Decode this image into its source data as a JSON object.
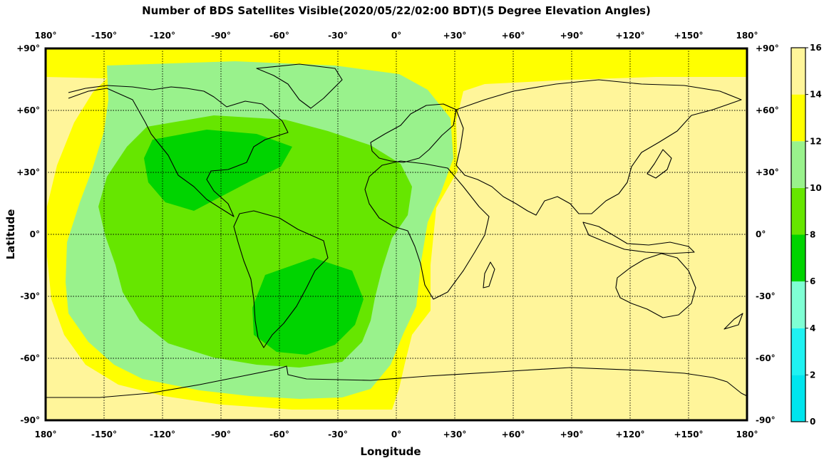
{
  "title": "Number of BDS Satellites Visible(2020/05/22/02:00 BDT)(5 Degree Elevation Angles)",
  "map": {
    "xlabel": "Longitude",
    "ylabel": "Latitude",
    "lon_ticks": [
      "180°",
      "-150°",
      "-120°",
      "-90°",
      "-60°",
      "-30°",
      "0°",
      "+30°",
      "+60°",
      "+90°",
      "+120°",
      "+150°",
      "180°"
    ],
    "lat_ticks": [
      "+90°",
      "+60°",
      "+30°",
      "0°",
      "-30°",
      "-60°",
      "-90°"
    ],
    "lon_range": [
      -180,
      180
    ],
    "lat_range": [
      -90,
      90
    ],
    "grid": true
  },
  "colorbar": {
    "ticks": [
      "16",
      "14",
      "12",
      "10",
      "8",
      "6",
      "4",
      "2",
      "0"
    ],
    "bands": [
      {
        "min": 0,
        "max": 2,
        "color": "#00E5EE"
      },
      {
        "min": 2,
        "max": 4,
        "color": "#1FF2F2"
      },
      {
        "min": 4,
        "max": 6,
        "color": "#7FFFD4"
      },
      {
        "min": 6,
        "max": 8,
        "color": "#00D400"
      },
      {
        "min": 8,
        "max": 10,
        "color": "#66E600"
      },
      {
        "min": 10,
        "max": 12,
        "color": "#99F28C"
      },
      {
        "min": 12,
        "max": 14,
        "color": "#FFFF00"
      },
      {
        "min": 14,
        "max": 16,
        "color": "#FFF59A"
      }
    ]
  }
}
